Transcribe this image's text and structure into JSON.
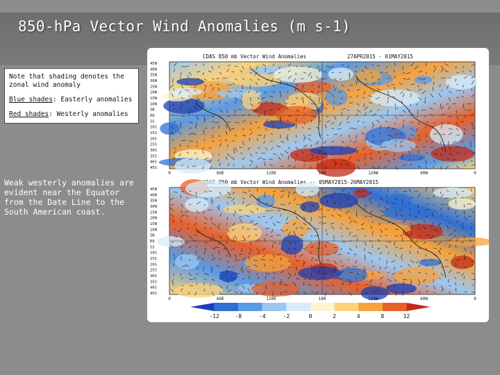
{
  "slide": {
    "title": "850-hPa Vector Wind Anomalies  (m s-1)"
  },
  "note_box": {
    "line1": "Note that shading denotes the zonal wind anomaly",
    "blue_label": "Blue shades",
    "blue_rest": ": Easterly anomalies",
    "red_label": "Red shades",
    "red_rest": ": Westerly anomalies"
  },
  "summary": "Weak westerly anomalies are evident near the Equator from the Date Line to the South American coast.",
  "panels": [
    {
      "header": "CDAS 850 mb Vector Wind Anomalies",
      "dates": "27APR2015 - 01MAY2015",
      "lat_labels": [
        "45N",
        "40N",
        "35N",
        "30N",
        "25N",
        "20N",
        "15N",
        "10N",
        "5N",
        "EQ",
        "5S",
        "10S",
        "15S",
        "20S",
        "25S",
        "30S",
        "35S",
        "40S",
        "45S"
      ],
      "lon_labels": [
        "0",
        "60E",
        "120E",
        "180",
        "120W",
        "60W",
        "0"
      ]
    },
    {
      "header": "CDAS 850 mb Vector Wind Anomalies -- 05MAY2015-26MAY2015",
      "dates": "",
      "lat_labels": [
        "45N",
        "40N",
        "35N",
        "30N",
        "25N",
        "20N",
        "15N",
        "10N",
        "5N",
        "EQ",
        "5S",
        "10S",
        "15S",
        "20S",
        "25S",
        "30S",
        "35S",
        "40S",
        "45S"
      ],
      "lon_labels": [
        "0",
        "60E",
        "120E",
        "180",
        "120W",
        "60W",
        "0"
      ]
    }
  ],
  "colorbar": {
    "ticks": [
      "-12",
      "-8",
      "-4",
      "-2",
      "0",
      "2",
      "4",
      "8",
      "12"
    ],
    "colors": [
      "#1a3fb8",
      "#2f6fd6",
      "#5a9ae6",
      "#9dc7f0",
      "#d7ecfa",
      "#fbf4cf",
      "#fcd27a",
      "#f7a13b",
      "#e8602a",
      "#c42a15"
    ]
  }
}
